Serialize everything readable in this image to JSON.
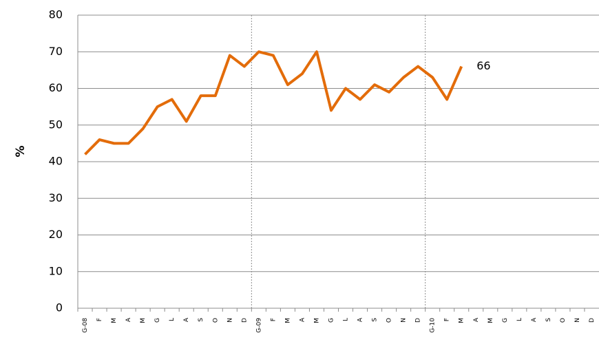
{
  "chart_data": {
    "type": "line",
    "ylabel": "%",
    "categories": [
      "G-08",
      "F",
      "M",
      "A",
      "M",
      "G",
      "L",
      "A",
      "S",
      "O",
      "N",
      "D",
      "G-09",
      "F",
      "M",
      "A",
      "M",
      "G",
      "L",
      "A",
      "S",
      "O",
      "N",
      "D",
      "G-10",
      "F",
      "M",
      "A",
      "M",
      "G",
      "L",
      "A",
      "S",
      "O",
      "N",
      "D"
    ],
    "series": [
      {
        "name": "%",
        "color": "#e36c0a",
        "values": [
          42,
          46,
          45,
          45,
          49,
          55,
          57,
          51,
          58,
          58,
          69,
          66,
          70,
          69,
          61,
          64,
          70,
          54,
          60,
          57,
          61,
          59,
          63,
          66,
          63,
          57,
          66,
          null,
          null,
          null,
          null,
          null,
          null,
          null,
          null,
          null
        ]
      }
    ],
    "ylim": [
      0,
      80
    ],
    "yticks": [
      0,
      10,
      20,
      30,
      40,
      50,
      60,
      70,
      80
    ],
    "grid": true
  }
}
